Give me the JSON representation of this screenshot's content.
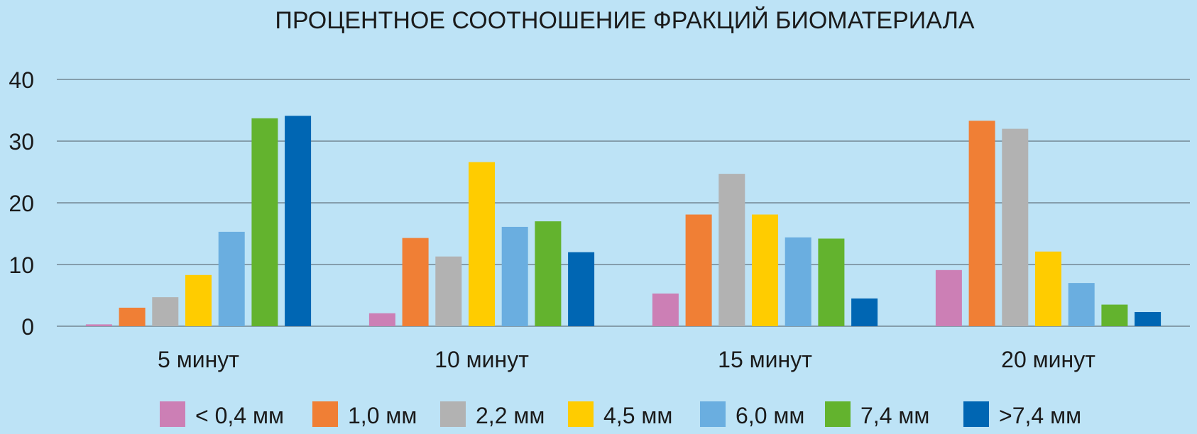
{
  "chart_data": {
    "type": "bar",
    "title": "ПРОЦЕНТНОЕ СООТНОШЕНИЕ ФРАКЦИЙ БИОМАТЕРИАЛА",
    "xlabel": "",
    "ylabel": "",
    "ylim": [
      0,
      40
    ],
    "yticks": [
      "0",
      "10",
      "20",
      "30",
      "40"
    ],
    "grid": true,
    "legend_position": "bottom",
    "categories": [
      "5 минут",
      "10 минут",
      "15 минут",
      "20 минут"
    ],
    "series": [
      {
        "name": "< 0,4 мм",
        "color": "#cc7fb5",
        "values": [
          0.3,
          2.1,
          5.3,
          9.1
        ]
      },
      {
        "name": "1,0 мм",
        "color": "#f07f35",
        "values": [
          3.0,
          14.3,
          18.1,
          33.3
        ]
      },
      {
        "name": "2,2 мм",
        "color": "#b2b2b2",
        "values": [
          4.7,
          11.3,
          24.7,
          32.0
        ]
      },
      {
        "name": "4,5 мм",
        "color": "#ffcc00",
        "values": [
          8.3,
          26.6,
          18.1,
          12.1
        ]
      },
      {
        "name": "6,0 мм",
        "color": "#6aaee0",
        "values": [
          15.3,
          16.1,
          14.4,
          7.0
        ]
      },
      {
        "name": "7,4 мм",
        "color": "#63b32e",
        "values": [
          33.7,
          17.0,
          14.2,
          3.5
        ]
      },
      {
        "name": ">7,4 мм",
        "color": "#0066b3",
        "values": [
          34.1,
          12.0,
          4.5,
          2.3
        ]
      }
    ]
  }
}
